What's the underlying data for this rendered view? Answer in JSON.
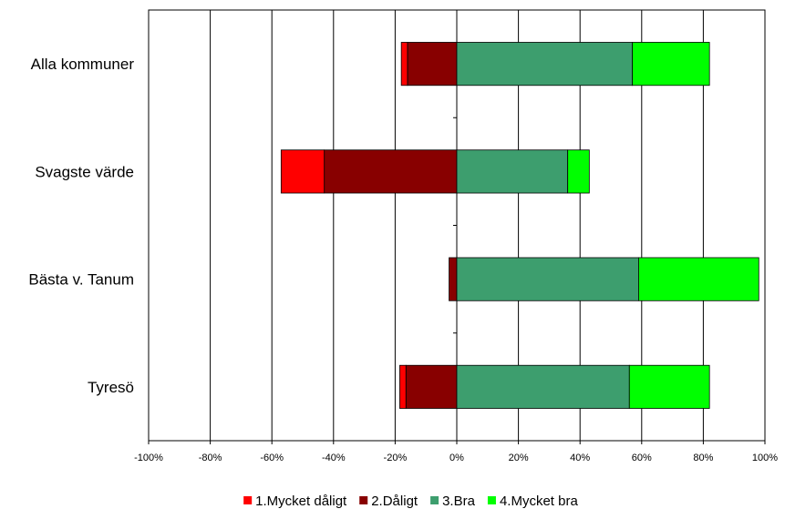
{
  "chart_data": {
    "type": "bar",
    "orientation": "horizontal",
    "stacked": "diverging",
    "title": "",
    "xlabel": "",
    "ylabel": "",
    "xlim": [
      -100,
      100
    ],
    "x_ticks": [
      "-100%",
      "-80%",
      "-60%",
      "-40%",
      "-20%",
      "0%",
      "20%",
      "40%",
      "60%",
      "80%",
      "100%"
    ],
    "x_tick_values": [
      -100,
      -80,
      -60,
      -40,
      -20,
      0,
      20,
      40,
      60,
      80,
      100
    ],
    "grid": true,
    "legend_position": "bottom",
    "categories": [
      "Alla kommuner",
      "Svagste värde",
      "Bästa v. Tanum",
      "Tyresö"
    ],
    "series": [
      {
        "name": "1.Mycket dåligt",
        "color": "#FF0000",
        "side": "negative",
        "values": [
          2,
          14,
          0,
          2
        ]
      },
      {
        "name": "2.Dåligt",
        "color": "#880000",
        "side": "negative",
        "values": [
          16,
          43,
          2.5,
          16.5
        ]
      },
      {
        "name": "3.Bra",
        "color": "#3D9E6E",
        "side": "positive",
        "values": [
          57,
          36,
          59,
          56
        ]
      },
      {
        "name": "4.Mycket bra",
        "color": "#00FF00",
        "side": "positive",
        "values": [
          25,
          7,
          39,
          26
        ]
      }
    ]
  }
}
